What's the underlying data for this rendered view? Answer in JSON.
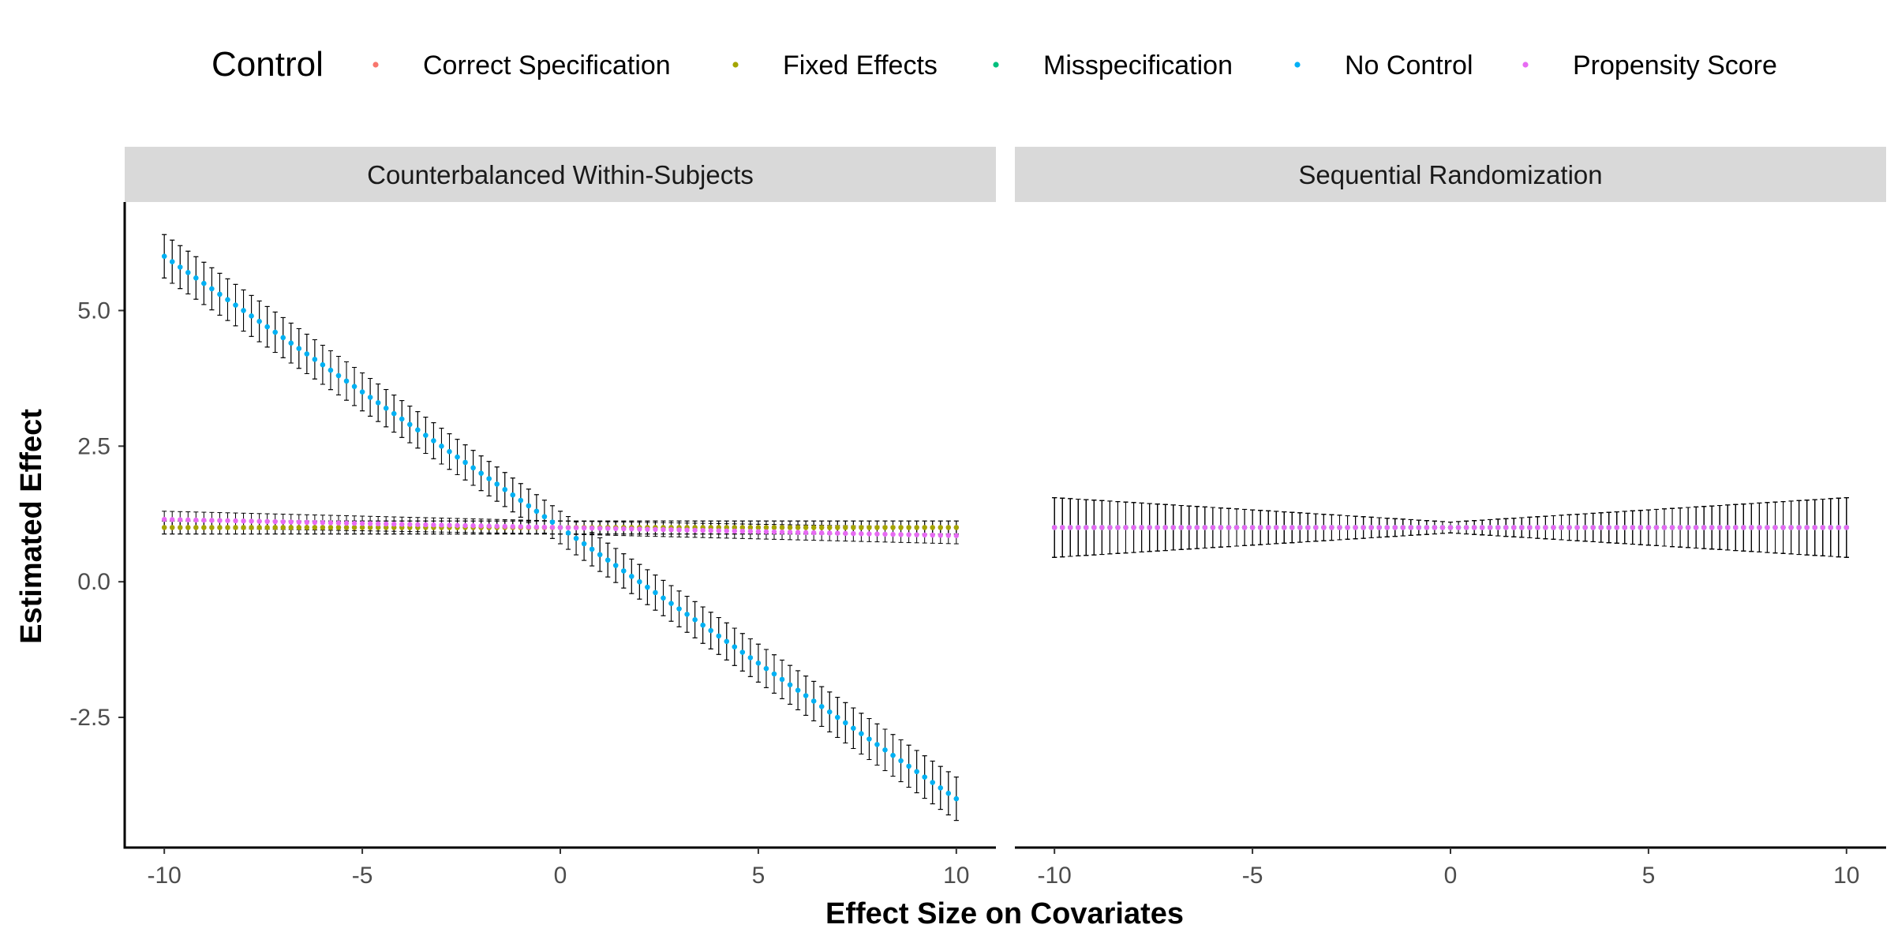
{
  "legend": {
    "title": "Control",
    "entries": [
      {
        "label": "Correct Specification",
        "color": "#F8766D"
      },
      {
        "label": "Fixed Effects",
        "color": "#A3A500"
      },
      {
        "label": "Misspecification",
        "color": "#00BF7D"
      },
      {
        "label": "No Control",
        "color": "#00B0F6"
      },
      {
        "label": "Propensity Score",
        "color": "#E76BF3"
      }
    ]
  },
  "chart_data": {
    "type": "scatter",
    "with_error_bars": true,
    "xlabel": "Effect Size on Covariates",
    "ylabel": "Estimated Effect",
    "x_ticks": [
      "-10",
      "-5",
      "0",
      "5",
      "10"
    ],
    "y_ticks": [
      "-2.5",
      "0.0",
      "2.5",
      "5.0"
    ],
    "xlim": [
      -11,
      11
    ],
    "ylim": [
      -4.9,
      7
    ],
    "x_range": [
      -10,
      10
    ],
    "x_step": 0.2,
    "grid": false,
    "legend_position": "top",
    "panels": [
      {
        "title": "Counterbalanced Within-Subjects",
        "series": [
          {
            "name": "Correct Specification",
            "y_at_xmin": 1.0,
            "y_at_xmax": 1.0,
            "ci_half_width_range": [
              0.12,
              0.12
            ]
          },
          {
            "name": "Fixed Effects",
            "y_at_xmin": 1.0,
            "y_at_xmax": 1.0,
            "ci_half_width_range": [
              0.12,
              0.12
            ]
          },
          {
            "name": "Misspecification",
            "y_at_xmin": 6.0,
            "y_at_xmax": -4.0,
            "ci_half_width_range": [
              0.4,
              0.3
            ]
          },
          {
            "name": "No Control",
            "y_at_xmin": 6.0,
            "y_at_xmax": -4.0,
            "ci_half_width_range": [
              0.4,
              0.3
            ]
          },
          {
            "name": "Propensity Score",
            "y_at_xmin": 1.15,
            "y_at_xmax": 0.85,
            "ci_half_width_range": [
              0.15,
              0.12
            ]
          }
        ]
      },
      {
        "title": "Sequential Randomization",
        "series": [
          {
            "name": "Correct Specification",
            "y_at_xmin": 1.0,
            "y_at_xmax": 1.0,
            "ci_half_width_range": [
              0.55,
              0.1
            ]
          },
          {
            "name": "Fixed Effects",
            "y_at_xmin": 1.0,
            "y_at_xmax": 1.0,
            "ci_half_width_range": [
              0.55,
              0.1
            ]
          },
          {
            "name": "Misspecification",
            "y_at_xmin": 1.0,
            "y_at_xmax": 1.0,
            "ci_half_width_range": [
              0.55,
              0.1
            ]
          },
          {
            "name": "No Control",
            "y_at_xmin": 1.0,
            "y_at_xmax": 1.0,
            "ci_half_width_range": [
              0.55,
              0.1
            ]
          },
          {
            "name": "Propensity Score",
            "y_at_xmin": 1.0,
            "y_at_xmax": 1.0,
            "ci_half_width_range": [
              0.55,
              0.1
            ]
          }
        ]
      }
    ]
  }
}
